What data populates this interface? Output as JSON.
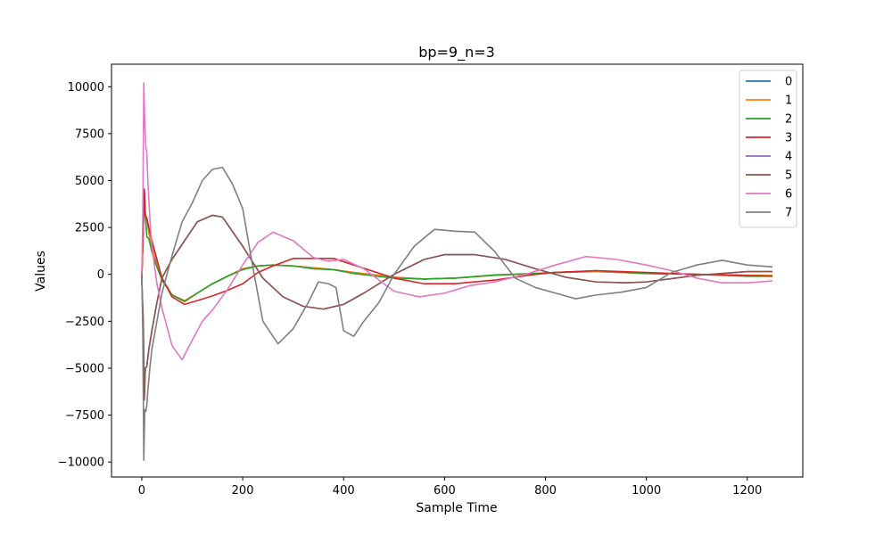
{
  "chart_data": {
    "type": "line",
    "title": "bp=9_n=3",
    "xlabel": "Sample Time",
    "ylabel": "Values",
    "xlim": [
      -60,
      1310
    ],
    "ylim": [
      -10800,
      11200
    ],
    "xticks": [
      0,
      200,
      400,
      600,
      800,
      1000,
      1200
    ],
    "yticks": [
      -10000,
      -7500,
      -5000,
      -2500,
      0,
      2500,
      5000,
      7500,
      10000
    ],
    "xtick_labels": [
      "0",
      "200",
      "400",
      "600",
      "800",
      "1000",
      "1200"
    ],
    "ytick_labels": [
      "−10000",
      "−7500",
      "−5000",
      "−2500",
      "0",
      "2500",
      "5000",
      "7500",
      "10000"
    ],
    "grid": false,
    "legend_position": "top-right",
    "series": [
      {
        "name": "0",
        "color": "#1f77b4",
        "x": [
          0,
          3,
          5,
          7,
          10,
          14,
          20,
          30,
          40,
          60,
          85,
          110,
          140,
          170,
          200,
          230,
          260,
          300,
          340,
          380,
          420,
          500,
          560,
          620,
          700,
          780,
          820,
          900,
          950,
          1000,
          1100,
          1200,
          1250
        ],
        "y": [
          -200,
          2500,
          4500,
          3200,
          3000,
          2200,
          1500,
          500,
          -200,
          -1100,
          -1400,
          -1000,
          -500,
          -100,
          300,
          450,
          500,
          450,
          350,
          250,
          100,
          -150,
          -250,
          -200,
          -50,
          50,
          100,
          150,
          100,
          50,
          0,
          -50,
          -50
        ]
      },
      {
        "name": "1",
        "color": "#ff7f0e",
        "x": [
          0,
          3,
          5,
          7,
          10,
          14,
          20,
          30,
          40,
          60,
          85,
          110,
          140,
          170,
          200,
          230,
          260,
          300,
          340,
          380,
          420,
          500,
          560,
          620,
          700,
          780,
          820,
          900,
          950,
          1000,
          1100,
          1200,
          1250
        ],
        "y": [
          -200,
          2500,
          4500,
          3200,
          3000,
          2200,
          1500,
          500,
          -200,
          -1100,
          -1400,
          -1000,
          -500,
          -100,
          300,
          450,
          500,
          450,
          350,
          250,
          100,
          -150,
          -250,
          -200,
          -50,
          50,
          100,
          150,
          100,
          50,
          0,
          -50,
          -50
        ]
      },
      {
        "name": "2",
        "color": "#2ca02c",
        "x": [
          0,
          3,
          5,
          7,
          10,
          14,
          20,
          30,
          40,
          60,
          85,
          110,
          140,
          170,
          200,
          230,
          260,
          300,
          340,
          380,
          420,
          500,
          560,
          620,
          700,
          780,
          820,
          900,
          950,
          1000,
          1100,
          1200,
          1250
        ],
        "y": [
          -200,
          2500,
          4500,
          3200,
          2000,
          1900,
          1200,
          400,
          -300,
          -1100,
          -1450,
          -1000,
          -500,
          -100,
          250,
          450,
          500,
          450,
          300,
          250,
          50,
          -200,
          -250,
          -200,
          -30,
          50,
          100,
          200,
          120,
          50,
          0,
          -100,
          -100
        ]
      },
      {
        "name": "3",
        "color": "#d62728",
        "x": [
          0,
          3,
          5,
          7,
          10,
          14,
          20,
          30,
          40,
          60,
          85,
          110,
          140,
          170,
          200,
          230,
          260,
          300,
          340,
          380,
          420,
          500,
          560,
          620,
          700,
          780,
          820,
          900,
          950,
          1000,
          1100,
          1200,
          1250
        ],
        "y": [
          -300,
          2500,
          4550,
          3100,
          3000,
          2500,
          1800,
          800,
          -200,
          -1200,
          -1600,
          -1400,
          -1150,
          -850,
          -500,
          100,
          450,
          850,
          850,
          850,
          500,
          -200,
          -500,
          -500,
          -300,
          0,
          100,
          200,
          150,
          100,
          0,
          -50,
          -100
        ]
      },
      {
        "name": "4",
        "color": "#9467bd",
        "x": [
          0,
          3,
          5,
          7,
          10,
          14,
          20,
          30,
          40,
          60,
          85,
          110,
          140,
          160,
          200,
          240,
          280,
          320,
          360,
          400,
          440,
          500,
          560,
          600,
          660,
          720,
          780,
          840,
          900,
          960,
          1000,
          1100,
          1200,
          1250
        ],
        "y": [
          -300,
          -2500,
          -6700,
          -5000,
          -4900,
          -4000,
          -3000,
          -1500,
          -200,
          800,
          1800,
          2800,
          3150,
          3050,
          1500,
          -200,
          -1200,
          -1700,
          -1850,
          -1600,
          -1000,
          0,
          800,
          1050,
          1050,
          800,
          300,
          -150,
          -400,
          -450,
          -400,
          -50,
          150,
          150
        ]
      },
      {
        "name": "5",
        "color": "#8c564b",
        "x": [
          0,
          3,
          5,
          7,
          10,
          14,
          20,
          30,
          40,
          60,
          85,
          110,
          140,
          160,
          200,
          240,
          280,
          320,
          360,
          400,
          440,
          500,
          560,
          600,
          660,
          720,
          780,
          840,
          900,
          960,
          1000,
          1100,
          1200,
          1250
        ],
        "y": [
          -300,
          -2500,
          -6700,
          -5000,
          -4900,
          -4000,
          -3000,
          -1500,
          -200,
          800,
          1800,
          2800,
          3150,
          3050,
          1500,
          -200,
          -1200,
          -1700,
          -1850,
          -1600,
          -1000,
          0,
          800,
          1050,
          1050,
          800,
          300,
          -150,
          -400,
          -450,
          -400,
          -50,
          150,
          150
        ]
      },
      {
        "name": "6",
        "color": "#e377c2",
        "x": [
          0,
          2,
          4,
          6,
          8,
          10,
          12,
          16,
          20,
          30,
          40,
          60,
          80,
          100,
          120,
          140,
          170,
          200,
          230,
          260,
          300,
          340,
          370,
          400,
          440,
          500,
          550,
          600,
          650,
          700,
          760,
          820,
          880,
          940,
          1000,
          1050,
          1100,
          1150,
          1200,
          1250
        ],
        "y": [
          0,
          3000,
          10200,
          8000,
          6800,
          6500,
          5000,
          3000,
          1500,
          -500,
          -1800,
          -3800,
          -4550,
          -3500,
          -2500,
          -1900,
          -800,
          500,
          1700,
          2250,
          1800,
          900,
          700,
          800,
          300,
          -900,
          -1200,
          -1000,
          -600,
          -400,
          0,
          500,
          950,
          800,
          500,
          200,
          -200,
          -450,
          -450,
          -350
        ]
      },
      {
        "name": "7",
        "color": "#7f7f7f",
        "x": [
          0,
          2,
          4,
          6,
          8,
          10,
          12,
          16,
          20,
          30,
          40,
          60,
          80,
          100,
          120,
          140,
          160,
          180,
          200,
          220,
          240,
          270,
          300,
          330,
          350,
          370,
          385,
          400,
          420,
          440,
          470,
          500,
          540,
          580,
          620,
          660,
          700,
          740,
          780,
          820,
          860,
          900,
          950,
          1000,
          1050,
          1100,
          1150,
          1200,
          1250
        ],
        "y": [
          0,
          -3000,
          -9900,
          -7200,
          -7300,
          -7000,
          -6200,
          -5000,
          -4000,
          -2500,
          -1000,
          1000,
          2800,
          3800,
          5000,
          5600,
          5700,
          4800,
          3500,
          400,
          -2500,
          -3700,
          -2900,
          -1500,
          -400,
          -500,
          -700,
          -3000,
          -3300,
          -2500,
          -1500,
          0,
          1500,
          2400,
          2300,
          2250,
          1200,
          -200,
          -700,
          -1000,
          -1300,
          -1100,
          -950,
          -700,
          100,
          500,
          750,
          500,
          400
        ]
      }
    ]
  }
}
